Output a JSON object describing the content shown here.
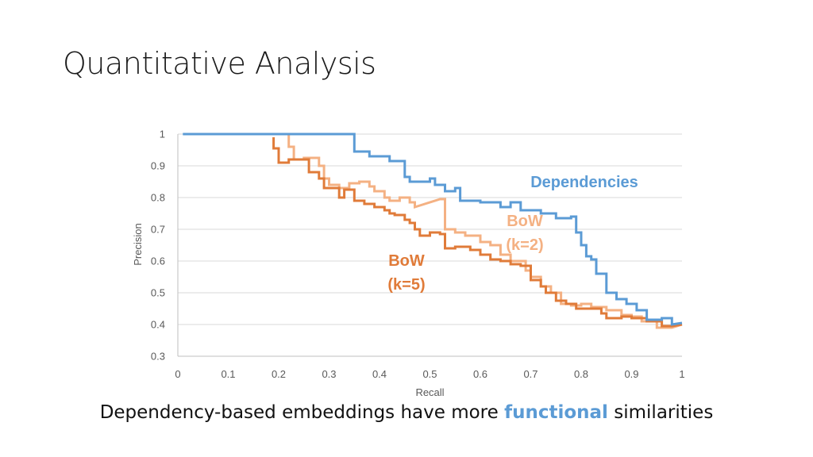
{
  "slide": {
    "title": "Quantitative Analysis",
    "caption_before": "Dependency-based embeddings have more ",
    "caption_highlight": "functional",
    "caption_after": " similarities"
  },
  "colors": {
    "dependencies": "#5b9bd5",
    "bow2": "#f4b183",
    "bow5": "#e07b39",
    "grid": "#d9d9d9",
    "axis": "#bfbfbf",
    "text": "#595959"
  },
  "chart_data": {
    "type": "line",
    "title": "",
    "xlabel": "Recall",
    "ylabel": "Precision",
    "xlim": [
      0,
      1
    ],
    "ylim": [
      0.3,
      1
    ],
    "x_ticks": [
      "0",
      "0.1",
      "0.2",
      "0.3",
      "0.4",
      "0.5",
      "0.6",
      "0.7",
      "0.8",
      "0.9",
      "1"
    ],
    "y_ticks": [
      "0.3",
      "0.4",
      "0.5",
      "0.6",
      "0.7",
      "0.8",
      "0.9",
      "1"
    ],
    "grid": "horizontal",
    "legend": "none",
    "series": [
      {
        "name": "Dependencies",
        "label_lines": [
          "Dependencies"
        ],
        "color": "#5b9bd5",
        "points": [
          [
            0.01,
            1.0
          ],
          [
            0.35,
            1.0
          ],
          [
            0.35,
            0.945
          ],
          [
            0.38,
            0.945
          ],
          [
            0.38,
            0.93
          ],
          [
            0.42,
            0.93
          ],
          [
            0.42,
            0.915
          ],
          [
            0.45,
            0.915
          ],
          [
            0.45,
            0.865
          ],
          [
            0.46,
            0.865
          ],
          [
            0.46,
            0.85
          ],
          [
            0.5,
            0.85
          ],
          [
            0.5,
            0.86
          ],
          [
            0.51,
            0.86
          ],
          [
            0.51,
            0.84
          ],
          [
            0.53,
            0.84
          ],
          [
            0.53,
            0.82
          ],
          [
            0.55,
            0.82
          ],
          [
            0.55,
            0.83
          ],
          [
            0.56,
            0.83
          ],
          [
            0.56,
            0.79
          ],
          [
            0.6,
            0.79
          ],
          [
            0.6,
            0.785
          ],
          [
            0.64,
            0.785
          ],
          [
            0.64,
            0.77
          ],
          [
            0.66,
            0.77
          ],
          [
            0.66,
            0.785
          ],
          [
            0.68,
            0.785
          ],
          [
            0.68,
            0.76
          ],
          [
            0.72,
            0.76
          ],
          [
            0.72,
            0.75
          ],
          [
            0.75,
            0.75
          ],
          [
            0.75,
            0.735
          ],
          [
            0.78,
            0.735
          ],
          [
            0.78,
            0.74
          ],
          [
            0.79,
            0.74
          ],
          [
            0.79,
            0.69
          ],
          [
            0.8,
            0.69
          ],
          [
            0.8,
            0.65
          ],
          [
            0.81,
            0.65
          ],
          [
            0.81,
            0.615
          ],
          [
            0.82,
            0.615
          ],
          [
            0.82,
            0.605
          ],
          [
            0.83,
            0.605
          ],
          [
            0.83,
            0.56
          ],
          [
            0.85,
            0.56
          ],
          [
            0.85,
            0.5
          ],
          [
            0.87,
            0.5
          ],
          [
            0.87,
            0.48
          ],
          [
            0.89,
            0.48
          ],
          [
            0.89,
            0.465
          ],
          [
            0.91,
            0.465
          ],
          [
            0.91,
            0.445
          ],
          [
            0.93,
            0.445
          ],
          [
            0.93,
            0.415
          ],
          [
            0.96,
            0.415
          ],
          [
            0.96,
            0.42
          ],
          [
            0.98,
            0.42
          ],
          [
            0.98,
            0.4
          ],
          [
            1.0,
            0.405
          ]
        ]
      },
      {
        "name": "BoW (k=2)",
        "label_lines": [
          "BoW",
          "(k=2)"
        ],
        "color": "#f4b183",
        "points": [
          [
            0.22,
            1.0
          ],
          [
            0.22,
            0.96
          ],
          [
            0.23,
            0.96
          ],
          [
            0.23,
            0.92
          ],
          [
            0.25,
            0.92
          ],
          [
            0.25,
            0.925
          ],
          [
            0.28,
            0.925
          ],
          [
            0.28,
            0.9
          ],
          [
            0.29,
            0.9
          ],
          [
            0.29,
            0.86
          ],
          [
            0.3,
            0.86
          ],
          [
            0.3,
            0.84
          ],
          [
            0.32,
            0.84
          ],
          [
            0.32,
            0.83
          ],
          [
            0.34,
            0.83
          ],
          [
            0.34,
            0.845
          ],
          [
            0.36,
            0.845
          ],
          [
            0.36,
            0.85
          ],
          [
            0.38,
            0.85
          ],
          [
            0.38,
            0.835
          ],
          [
            0.39,
            0.835
          ],
          [
            0.39,
            0.82
          ],
          [
            0.41,
            0.82
          ],
          [
            0.41,
            0.8
          ],
          [
            0.42,
            0.8
          ],
          [
            0.42,
            0.79
          ],
          [
            0.44,
            0.79
          ],
          [
            0.44,
            0.8
          ],
          [
            0.46,
            0.8
          ],
          [
            0.46,
            0.785
          ],
          [
            0.47,
            0.785
          ],
          [
            0.47,
            0.77
          ],
          [
            0.52,
            0.795
          ],
          [
            0.53,
            0.795
          ],
          [
            0.53,
            0.7
          ],
          [
            0.55,
            0.7
          ],
          [
            0.55,
            0.69
          ],
          [
            0.57,
            0.69
          ],
          [
            0.57,
            0.68
          ],
          [
            0.6,
            0.68
          ],
          [
            0.6,
            0.66
          ],
          [
            0.62,
            0.66
          ],
          [
            0.62,
            0.65
          ],
          [
            0.64,
            0.65
          ],
          [
            0.64,
            0.62
          ],
          [
            0.66,
            0.62
          ],
          [
            0.66,
            0.6
          ],
          [
            0.69,
            0.6
          ],
          [
            0.69,
            0.57
          ],
          [
            0.7,
            0.57
          ],
          [
            0.7,
            0.55
          ],
          [
            0.72,
            0.55
          ],
          [
            0.72,
            0.52
          ],
          [
            0.74,
            0.52
          ],
          [
            0.74,
            0.5
          ],
          [
            0.76,
            0.5
          ],
          [
            0.76,
            0.465
          ],
          [
            0.78,
            0.465
          ],
          [
            0.78,
            0.46
          ],
          [
            0.8,
            0.46
          ],
          [
            0.8,
            0.465
          ],
          [
            0.82,
            0.465
          ],
          [
            0.82,
            0.455
          ],
          [
            0.85,
            0.455
          ],
          [
            0.85,
            0.445
          ],
          [
            0.88,
            0.445
          ],
          [
            0.88,
            0.43
          ],
          [
            0.9,
            0.43
          ],
          [
            0.9,
            0.425
          ],
          [
            0.92,
            0.425
          ],
          [
            0.92,
            0.41
          ],
          [
            0.95,
            0.41
          ],
          [
            0.95,
            0.39
          ],
          [
            0.98,
            0.39
          ],
          [
            1.0,
            0.4
          ]
        ]
      },
      {
        "name": "BoW (k=5)",
        "label_lines": [
          "BoW",
          "(k=5)"
        ],
        "color": "#e07b39",
        "points": [
          [
            0.19,
            0.99
          ],
          [
            0.19,
            0.955
          ],
          [
            0.2,
            0.955
          ],
          [
            0.2,
            0.91
          ],
          [
            0.22,
            0.91
          ],
          [
            0.22,
            0.92
          ],
          [
            0.26,
            0.92
          ],
          [
            0.26,
            0.88
          ],
          [
            0.28,
            0.88
          ],
          [
            0.28,
            0.86
          ],
          [
            0.29,
            0.86
          ],
          [
            0.29,
            0.83
          ],
          [
            0.32,
            0.83
          ],
          [
            0.32,
            0.8
          ],
          [
            0.33,
            0.8
          ],
          [
            0.33,
            0.825
          ],
          [
            0.35,
            0.825
          ],
          [
            0.35,
            0.79
          ],
          [
            0.37,
            0.79
          ],
          [
            0.37,
            0.78
          ],
          [
            0.39,
            0.78
          ],
          [
            0.39,
            0.77
          ],
          [
            0.41,
            0.77
          ],
          [
            0.41,
            0.76
          ],
          [
            0.42,
            0.76
          ],
          [
            0.42,
            0.75
          ],
          [
            0.43,
            0.75
          ],
          [
            0.43,
            0.745
          ],
          [
            0.45,
            0.745
          ],
          [
            0.45,
            0.73
          ],
          [
            0.46,
            0.73
          ],
          [
            0.46,
            0.72
          ],
          [
            0.47,
            0.72
          ],
          [
            0.47,
            0.7
          ],
          [
            0.48,
            0.7
          ],
          [
            0.48,
            0.68
          ],
          [
            0.5,
            0.68
          ],
          [
            0.5,
            0.69
          ],
          [
            0.52,
            0.69
          ],
          [
            0.52,
            0.685
          ],
          [
            0.53,
            0.685
          ],
          [
            0.53,
            0.64
          ],
          [
            0.55,
            0.64
          ],
          [
            0.55,
            0.645
          ],
          [
            0.58,
            0.645
          ],
          [
            0.58,
            0.635
          ],
          [
            0.6,
            0.635
          ],
          [
            0.6,
            0.62
          ],
          [
            0.62,
            0.62
          ],
          [
            0.62,
            0.605
          ],
          [
            0.64,
            0.605
          ],
          [
            0.64,
            0.6
          ],
          [
            0.66,
            0.6
          ],
          [
            0.66,
            0.59
          ],
          [
            0.68,
            0.59
          ],
          [
            0.68,
            0.585
          ],
          [
            0.7,
            0.585
          ],
          [
            0.7,
            0.54
          ],
          [
            0.72,
            0.54
          ],
          [
            0.72,
            0.52
          ],
          [
            0.73,
            0.52
          ],
          [
            0.73,
            0.5
          ],
          [
            0.75,
            0.5
          ],
          [
            0.75,
            0.475
          ],
          [
            0.77,
            0.475
          ],
          [
            0.77,
            0.465
          ],
          [
            0.79,
            0.465
          ],
          [
            0.79,
            0.45
          ],
          [
            0.82,
            0.45
          ],
          [
            0.82,
            0.45
          ],
          [
            0.84,
            0.45
          ],
          [
            0.84,
            0.435
          ],
          [
            0.85,
            0.435
          ],
          [
            0.85,
            0.42
          ],
          [
            0.88,
            0.42
          ],
          [
            0.88,
            0.425
          ],
          [
            0.9,
            0.425
          ],
          [
            0.9,
            0.42
          ],
          [
            0.93,
            0.42
          ],
          [
            0.93,
            0.41
          ],
          [
            0.96,
            0.41
          ],
          [
            0.96,
            0.395
          ],
          [
            0.98,
            0.395
          ],
          [
            1.0,
            0.4
          ]
        ]
      }
    ]
  }
}
